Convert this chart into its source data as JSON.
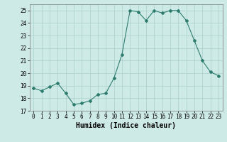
{
  "x": [
    0,
    1,
    2,
    3,
    4,
    5,
    6,
    7,
    8,
    9,
    10,
    11,
    12,
    13,
    14,
    15,
    16,
    17,
    18,
    19,
    20,
    21,
    22,
    23
  ],
  "y": [
    18.8,
    18.6,
    18.9,
    19.2,
    18.4,
    17.5,
    17.6,
    17.8,
    18.3,
    18.4,
    19.6,
    21.5,
    25.0,
    24.9,
    24.2,
    25.0,
    24.8,
    25.0,
    25.0,
    24.2,
    22.6,
    21.0,
    20.1,
    19.8
  ],
  "line_color": "#2d7c6e",
  "marker": "D",
  "marker_size": 2.0,
  "bg_color": "#ceeae7",
  "grid_color": "#aacfcc",
  "xlabel": "Humidex (Indice chaleur)",
  "ylim": [
    17,
    25.5
  ],
  "yticks": [
    17,
    18,
    19,
    20,
    21,
    22,
    23,
    24,
    25
  ],
  "xticks": [
    0,
    1,
    2,
    3,
    4,
    5,
    6,
    7,
    8,
    9,
    10,
    11,
    12,
    13,
    14,
    15,
    16,
    17,
    18,
    19,
    20,
    21,
    22,
    23
  ],
  "tick_fontsize": 5.5,
  "xlabel_fontsize": 7.0
}
